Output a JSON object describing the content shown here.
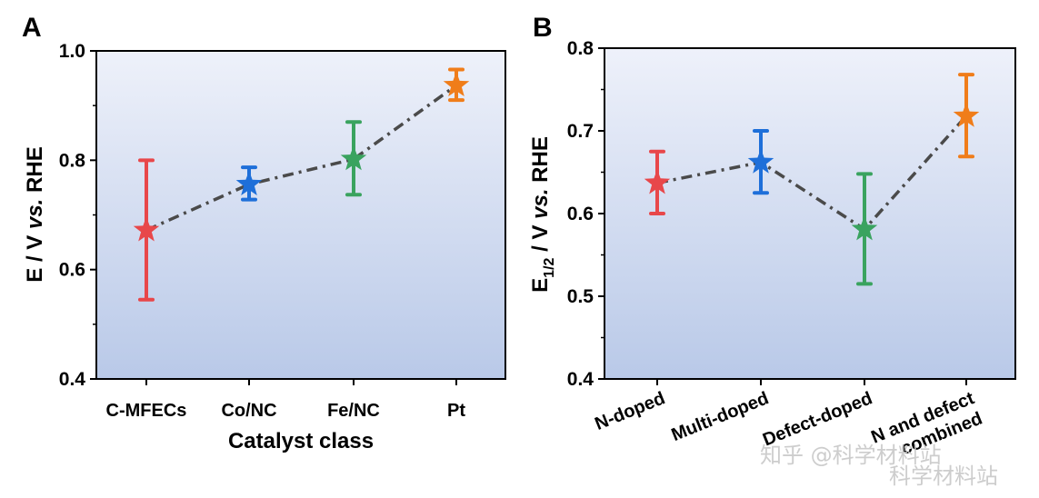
{
  "panels": [
    {
      "letter": "A"
    },
    {
      "letter": "B"
    }
  ],
  "colors": {
    "red": "#e8474a",
    "blue": "#1e6fd9",
    "green": "#3aa35f",
    "orange": "#f07d1a",
    "connector": "#4a4a4a",
    "bg_top": "#eef1fa",
    "bg_bottom": "#b9c9e8"
  },
  "chart_data": [
    {
      "type": "scatter",
      "title": "",
      "xlabel": "Catalyst class",
      "ylabel": "E / V vs. RHE",
      "ylabel_parts": [
        "E / V ",
        "vs.",
        " RHE"
      ],
      "ylim": [
        0.4,
        1.0
      ],
      "yticks": [
        0.4,
        0.6,
        0.8,
        1.0
      ],
      "ytick_labels": [
        "0.4",
        "0.6",
        "0.8",
        "1.0"
      ],
      "categories": [
        "C-MFECs",
        "Co/NC",
        "Fe/NC",
        "Pt"
      ],
      "values": [
        0.672,
        0.756,
        0.802,
        0.937
      ],
      "err_low": [
        0.545,
        0.728,
        0.737,
        0.91
      ],
      "err_high": [
        0.8,
        0.787,
        0.87,
        0.966
      ],
      "colors": [
        "#e8474a",
        "#1e6fd9",
        "#3aa35f",
        "#f07d1a"
      ],
      "marker": "star",
      "connector": "dash-dot"
    },
    {
      "type": "scatter",
      "title": "",
      "xlabel": "",
      "ylabel": "E1/2 / V vs. RHE",
      "ylabel_parts": [
        "E",
        "1/2",
        " / V ",
        "vs.",
        " RHE"
      ],
      "ylim": [
        0.4,
        0.8
      ],
      "yticks": [
        0.4,
        0.5,
        0.6,
        0.7,
        0.8
      ],
      "ytick_labels": [
        "0.4",
        "0.5",
        "0.6",
        "0.7",
        "0.8"
      ],
      "categories": [
        "N-doped",
        "Multi-doped",
        "Defect-doped",
        "N and defect combined"
      ],
      "category_lines": [
        [
          "N-doped"
        ],
        [
          "Multi-doped"
        ],
        [
          "Defect-doped"
        ],
        [
          "N and defect",
          "combined"
        ]
      ],
      "values": [
        0.637,
        0.662,
        0.581,
        0.718
      ],
      "err_low": [
        0.6,
        0.625,
        0.515,
        0.669
      ],
      "err_high": [
        0.675,
        0.7,
        0.648,
        0.768
      ],
      "colors": [
        "#e8474a",
        "#1e6fd9",
        "#3aa35f",
        "#f07d1a"
      ],
      "marker": "star",
      "connector": "dash-dot"
    }
  ],
  "watermark": {
    "line1": "知乎 @科学材料站",
    "line2": "科学材料站"
  }
}
